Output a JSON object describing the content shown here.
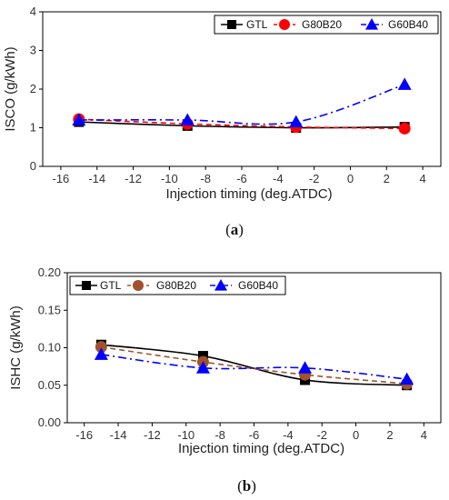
{
  "chart_data": [
    {
      "type": "line",
      "caption_open": "(",
      "caption_letter": "a",
      "caption_close": ")",
      "xlabel": "Injection timing (deg.ATDC)",
      "ylabel": "ISCO (g/kWh)",
      "xlim": [
        -17,
        5
      ],
      "ylim": [
        0,
        4
      ],
      "xticks": [
        -16,
        -14,
        -12,
        -10,
        -8,
        -6,
        -4,
        -2,
        0,
        2,
        4
      ],
      "yticks": [
        0,
        1,
        2,
        3,
        4
      ],
      "ytick_labels": [
        "0",
        "1",
        "2",
        "3",
        "4"
      ],
      "x": [
        -15,
        -9,
        -3,
        3
      ],
      "legend_position": "top-right",
      "series": [
        {
          "name": "GTL",
          "marker": "square",
          "color": "#000000",
          "dash": "solid",
          "values": [
            1.15,
            1.05,
            1.0,
            1.02
          ]
        },
        {
          "name": "G80B20",
          "marker": "circle",
          "color": "#ff0000",
          "dash": "dash",
          "values": [
            1.22,
            1.1,
            1.02,
            0.98
          ]
        },
        {
          "name": "G60B40",
          "marker": "triangle",
          "color": "#0000ff",
          "dash": "dashdot",
          "values": [
            1.2,
            1.2,
            1.15,
            2.12
          ]
        }
      ]
    },
    {
      "type": "line",
      "caption_open": "(",
      "caption_letter": "b",
      "caption_close": ")",
      "xlabel": "Injection timing (deg.ATDC)",
      "ylabel": "ISHC (g/kWh)",
      "xlim": [
        -17,
        5
      ],
      "ylim": [
        0,
        0.2
      ],
      "xticks": [
        -16,
        -14,
        -12,
        -10,
        -8,
        -6,
        -4,
        -2,
        0,
        2,
        4
      ],
      "yticks": [
        0,
        0.05,
        0.1,
        0.15,
        0.2
      ],
      "ytick_labels": [
        "0.00",
        "0.05",
        "0.10",
        "0.15",
        "0.20"
      ],
      "x": [
        -15,
        -9,
        -3,
        3
      ],
      "legend_position": "top-left",
      "series": [
        {
          "name": "GTL",
          "marker": "square",
          "color": "#000000",
          "dash": "solid",
          "values": [
            0.104,
            0.089,
            0.057,
            0.05
          ]
        },
        {
          "name": "G80B20",
          "marker": "circle",
          "color": "#a0522d",
          "dash": "dash",
          "values": [
            0.101,
            0.081,
            0.064,
            0.052
          ]
        },
        {
          "name": "G60B40",
          "marker": "triangle",
          "color": "#0000ff",
          "dash": "dashdot",
          "values": [
            0.091,
            0.073,
            0.073,
            0.058
          ]
        }
      ]
    }
  ]
}
